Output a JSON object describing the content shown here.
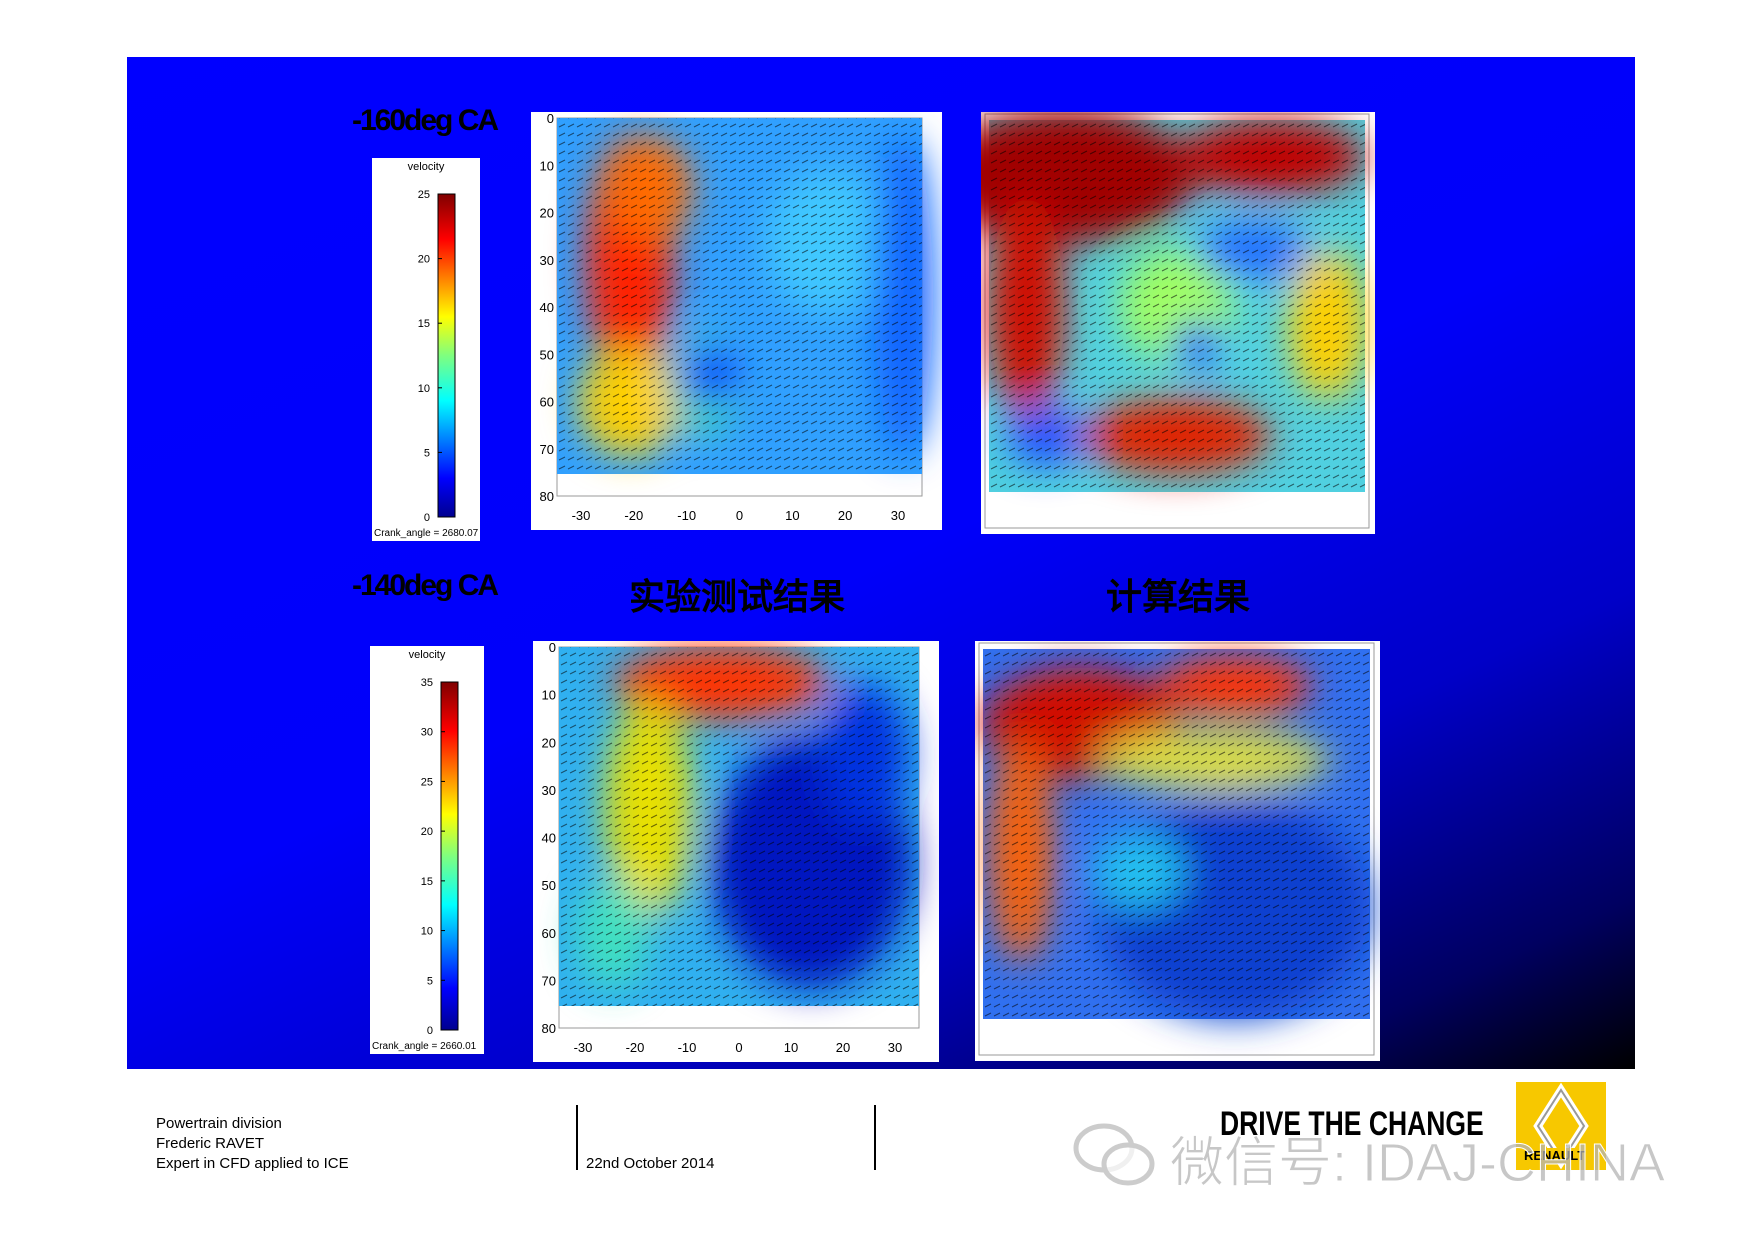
{
  "slide": {
    "panels": [
      {
        "label": "-160deg CA",
        "colorbar": {
          "title": "velocity",
          "ticks": [
            25,
            20,
            15,
            10,
            5,
            0
          ],
          "caption": "Crank_angle = 2680.07"
        },
        "experiment_axes": {
          "yticks": [
            0,
            10,
            20,
            30,
            40,
            50,
            60,
            70,
            80
          ],
          "xticks": [
            -30,
            -20,
            -10,
            0,
            10,
            20,
            30
          ]
        }
      },
      {
        "label": "-140deg CA",
        "colorbar": {
          "title": "velocity",
          "ticks": [
            35,
            30,
            25,
            20,
            15,
            10,
            5,
            0
          ],
          "caption": "Crank_angle = 2660.01"
        },
        "experiment_axes": {
          "yticks": [
            0,
            10,
            20,
            30,
            40,
            50,
            60,
            70,
            80
          ],
          "xticks": [
            -30,
            -20,
            -10,
            0,
            10,
            20,
            30
          ]
        }
      }
    ],
    "captions": [
      "实验测试结果",
      "计算结果"
    ]
  },
  "footer": {
    "lines": [
      "Powertrain division",
      "Frederic RAVET",
      "Expert in CFD applied to ICE"
    ],
    "date": "22nd October  2014",
    "slogan": "DRIVE THE CHANGE",
    "logo": "RENAULT"
  },
  "watermark": "微信号: IDAJ-CHINA"
}
